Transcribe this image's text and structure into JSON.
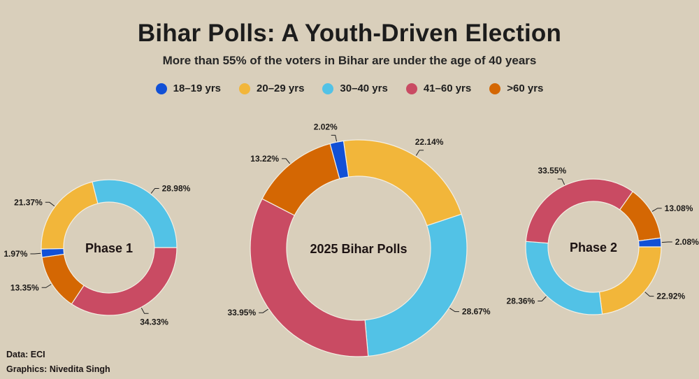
{
  "header": {
    "title": "Bihar Polls: A Youth-Driven Election",
    "subtitle": "More than 55% of the voters in Bihar are under the age of 40 years"
  },
  "legend": [
    {
      "label": "18–19 yrs",
      "color": "#1150d6"
    },
    {
      "label": "20–29 yrs",
      "color": "#f2b63a"
    },
    {
      "label": "30–40 yrs",
      "color": "#52c2e6"
    },
    {
      "label": "41–60 yrs",
      "color": "#c94b63"
    },
    {
      "label": ">60 yrs",
      "color": "#d46703"
    }
  ],
  "credits": {
    "data": "Data: ECI",
    "graphics": "Graphics: Nivedita Singh"
  },
  "chart_data": [
    {
      "type": "pie",
      "variant": "donut",
      "title": "Phase 1",
      "categories": [
        "18–19 yrs",
        "20–29 yrs",
        "30–40 yrs",
        "41–60 yrs",
        ">60 yrs"
      ],
      "values": [
        1.97,
        21.37,
        28.98,
        34.33,
        13.35
      ],
      "labels": [
        "1.97%",
        "21.37%",
        "28.98%",
        "34.33%",
        "13.35%"
      ],
      "unit": "%"
    },
    {
      "type": "pie",
      "variant": "donut",
      "title": "2025 Bihar Polls",
      "categories": [
        "18–19 yrs",
        "20–29 yrs",
        "30–40 yrs",
        "41–60 yrs",
        ">60 yrs"
      ],
      "values": [
        2.02,
        22.14,
        28.67,
        33.95,
        13.22
      ],
      "labels": [
        "2.02%",
        "22.14%",
        "28.67%",
        "33.95%",
        "13.22%"
      ],
      "unit": "%"
    },
    {
      "type": "pie",
      "variant": "donut",
      "title": "Phase 2",
      "categories": [
        "18–19 yrs",
        "20–29 yrs",
        "30–40 yrs",
        "41–60 yrs",
        ">60 yrs"
      ],
      "values": [
        2.08,
        22.92,
        28.36,
        33.55,
        13.08
      ],
      "labels": [
        "2.08%",
        "22.92%",
        "28.36%",
        "33.55%",
        "13.08%"
      ],
      "unit": "%"
    }
  ]
}
